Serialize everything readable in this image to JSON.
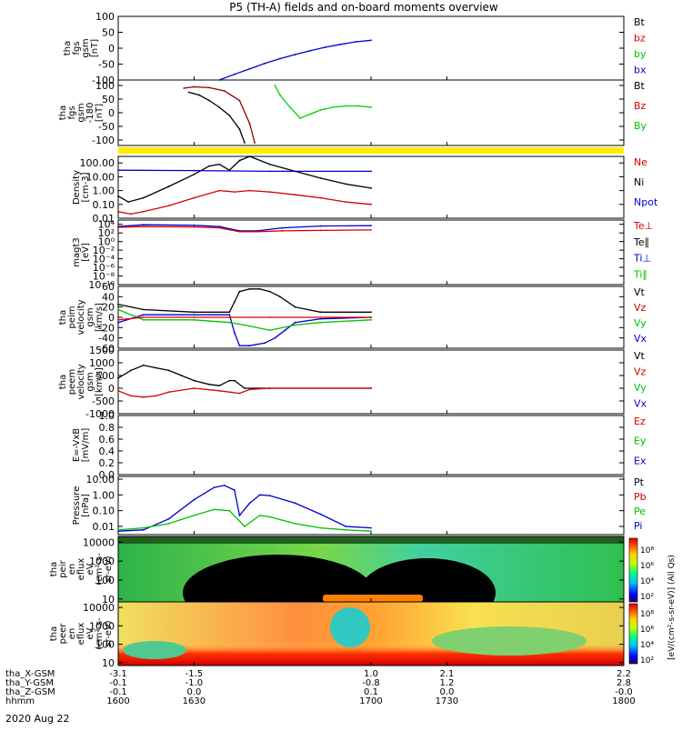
{
  "title": "P5 (TH-A) fields and on-board moments overview",
  "date": "2020 Aug 22",
  "x_axis": {
    "row_labels": [
      "tha_X-GSM",
      "tha_Y-GSM",
      "tha_Z-GSM",
      "hhmm"
    ],
    "columns": [
      [
        "-3.1",
        "-0.1",
        "-0.1",
        "1600"
      ],
      [
        "-1.5",
        "-1.0",
        "0.0",
        "1630"
      ],
      [
        "1.0",
        "-0.8",
        "0.1",
        "1700"
      ],
      [
        "2.1",
        "1.2",
        "0.0",
        "1730"
      ],
      [
        "2.2",
        "2.8",
        "-0.0",
        "1800"
      ]
    ]
  },
  "colorbar": {
    "ticks": [
      "10⁸",
      "10⁶",
      "10⁴",
      "10²"
    ],
    "units": "[eV/(cm²-s-sr-eV)] (All Qs)"
  },
  "chart_data": [
    {
      "type": "line",
      "ylabel": "tha\nfgs\ngsm\n[nT]",
      "ylim": [
        -100,
        100
      ],
      "yticks": [
        "100",
        "50",
        "0",
        "-50",
        "-100"
      ],
      "legend": [
        {
          "name": "Bt",
          "color": "#000000"
        },
        {
          "name": "bz",
          "color": "#d40000"
        },
        {
          "name": "by",
          "color": "#00c000"
        },
        {
          "name": "bx",
          "color": "#0000d0"
        }
      ],
      "series": [
        {
          "name": "bx",
          "color": "#0000d0",
          "x": [
            1640,
            1646,
            1652,
            1658,
            1664,
            1670,
            1676,
            1682,
            1688,
            1694,
            1700
          ],
          "y": [
            -100,
            -82,
            -65,
            -48,
            -33,
            -20,
            -8,
            3,
            12,
            20,
            25
          ]
        }
      ]
    },
    {
      "type": "line",
      "ylabel": "tha\nfgs\ngsm\n-180\n[nT]",
      "ylim": [
        -120,
        120
      ],
      "yticks": [
        "100",
        "50",
        "0",
        "-50",
        "-100"
      ],
      "legend": [
        {
          "name": "Bt",
          "color": "#000000"
        },
        {
          "name": "Bz",
          "color": "#d40000"
        },
        {
          "name": "By",
          "color": "#00c000"
        }
      ],
      "series": [
        {
          "name": "Bt",
          "color": "#000000",
          "x": [
            1628,
            1632,
            1636,
            1640,
            1644,
            1648,
            1650
          ],
          "y": [
            75,
            65,
            45,
            20,
            -10,
            -60,
            -110
          ]
        },
        {
          "name": "Bz",
          "color": "#8b0000",
          "x": [
            1626,
            1630,
            1636,
            1642,
            1648,
            1652,
            1654
          ],
          "y": [
            90,
            95,
            92,
            80,
            45,
            -40,
            -110
          ]
        },
        {
          "name": "By",
          "color": "#00d000",
          "x": [
            1662,
            1664,
            1668,
            1672,
            1676,
            1680,
            1685,
            1690,
            1695,
            1700
          ],
          "y": [
            100,
            65,
            20,
            -20,
            -5,
            10,
            20,
            25,
            25,
            20
          ]
        }
      ]
    },
    {
      "type": "line",
      "ylabel": "Density\n[cm-3]",
      "scale": "log",
      "ylim": [
        0.01,
        300
      ],
      "yticks": [
        "100.00",
        "10.00",
        "1.00",
        "0.10",
        "0.01"
      ],
      "legend": [
        {
          "name": "Ne",
          "color": "#d40000"
        },
        {
          "name": "Ni",
          "color": "#000000"
        },
        {
          "name": "Npot",
          "color": "#0000d0"
        }
      ],
      "series": [
        {
          "name": "Ni",
          "color": "#000000",
          "x": [
            1600,
            1604,
            1610,
            1620,
            1630,
            1636,
            1640,
            1644,
            1648,
            1652,
            1660,
            1670,
            1680,
            1690,
            1700
          ],
          "y": [
            0.4,
            0.15,
            0.3,
            2,
            15,
            60,
            80,
            30,
            150,
            300,
            80,
            25,
            8,
            3,
            1.5
          ]
        },
        {
          "name": "Ne",
          "color": "#d40000",
          "x": [
            1600,
            1605,
            1610,
            1620,
            1630,
            1640,
            1646,
            1652,
            1660,
            1670,
            1680,
            1690,
            1700
          ],
          "y": [
            0.03,
            0.02,
            0.03,
            0.08,
            0.3,
            1,
            0.8,
            1,
            0.8,
            0.5,
            0.3,
            0.15,
            0.1
          ]
        },
        {
          "name": "Npot",
          "color": "#0000d0",
          "x": [
            1600,
            1630,
            1660,
            1700
          ],
          "y": [
            30,
            28,
            25,
            25
          ]
        }
      ]
    },
    {
      "type": "line",
      "ylabel": "magt3\n[eV]",
      "scale": "log",
      "ylim": [
        1e-10,
        100000.0
      ],
      "yticks": [
        "10⁴",
        "10²",
        "10⁰",
        "10⁻²",
        "10⁻⁴",
        "10⁻⁶",
        "10⁻⁸",
        "10⁻¹⁰"
      ],
      "legend": [
        {
          "name": "Te⊥",
          "color": "#d40000"
        },
        {
          "name": "Te∥",
          "color": "#000000"
        },
        {
          "name": "Ti⊥",
          "color": "#0000d0"
        },
        {
          "name": "Ti∥",
          "color": "#00c000"
        }
      ],
      "series": [
        {
          "name": "Ti⊥",
          "color": "#0000d0",
          "x": [
            1600,
            1610,
            1630,
            1640,
            1648,
            1655,
            1665,
            1680,
            1700
          ],
          "y": [
            3000,
            8000,
            6000,
            3000,
            300,
            300,
            1500,
            4000,
            5000
          ]
        },
        {
          "name": "Te⊥",
          "color": "#d40000",
          "x": [
            1600,
            1610,
            1630,
            1640,
            1648,
            1655,
            1665,
            1680,
            1700
          ],
          "y": [
            2000,
            3000,
            2500,
            1500,
            200,
            200,
            300,
            400,
            500
          ]
        }
      ]
    },
    {
      "type": "line",
      "ylabel": "tha\npeim\nvelocity\ngsm\n[km/s]",
      "ylim": [
        -60,
        60
      ],
      "yticks": [
        "60",
        "40",
        "20",
        "0",
        "-20",
        "-40",
        "-60"
      ],
      "legend": [
        {
          "name": "Vt",
          "color": "#000000"
        },
        {
          "name": "Vz",
          "color": "#d40000"
        },
        {
          "name": "Vy",
          "color": "#00c000"
        },
        {
          "name": "Vx",
          "color": "#0000d0"
        }
      ],
      "series": [
        {
          "name": "Vt",
          "color": "#000000",
          "x": [
            1600,
            1610,
            1630,
            1644,
            1646,
            1648,
            1652,
            1656,
            1660,
            1664,
            1670,
            1680,
            1700
          ],
          "y": [
            25,
            15,
            10,
            10,
            30,
            50,
            55,
            55,
            50,
            40,
            20,
            10,
            10
          ]
        },
        {
          "name": "Vx",
          "color": "#0000d0",
          "x": [
            1600,
            1610,
            1630,
            1644,
            1646,
            1648,
            1652,
            1658,
            1662,
            1666,
            1670,
            1680,
            1700
          ],
          "y": [
            -10,
            5,
            5,
            5,
            -30,
            -55,
            -55,
            -50,
            -40,
            -25,
            -10,
            -3,
            0
          ]
        },
        {
          "name": "Vy",
          "color": "#00c000",
          "x": [
            1600,
            1610,
            1630,
            1644,
            1650,
            1660,
            1670,
            1680,
            1700
          ],
          "y": [
            15,
            -5,
            -5,
            -10,
            -15,
            -25,
            -15,
            -10,
            -5
          ]
        },
        {
          "name": "Vz",
          "color": "#d40000",
          "x": [
            1600,
            1610,
            1630,
            1660,
            1700
          ],
          "y": [
            -5,
            0,
            0,
            0,
            0
          ]
        }
      ]
    },
    {
      "type": "line",
      "ylabel": "tha\npeem\nvelocity\ngsm\n[km/s]",
      "ylim": [
        -1000,
        1500
      ],
      "yticks": [
        "1500",
        "1000",
        "500",
        "0",
        "-500",
        "-1000"
      ],
      "legend": [
        {
          "name": "Vt",
          "color": "#000000"
        },
        {
          "name": "Vz",
          "color": "#d40000"
        },
        {
          "name": "Vy",
          "color": "#00c000"
        },
        {
          "name": "Vx",
          "color": "#0000d0"
        }
      ],
      "series": [
        {
          "name": "Vt",
          "color": "#000000",
          "x": [
            1600,
            1605,
            1610,
            1615,
            1620,
            1625,
            1630,
            1636,
            1640,
            1644,
            1646,
            1650,
            1660,
            1700
          ],
          "y": [
            400,
            700,
            900,
            800,
            700,
            500,
            300,
            150,
            100,
            300,
            300,
            0,
            0,
            0
          ]
        },
        {
          "name": "Vz",
          "color": "#d40000",
          "x": [
            1600,
            1605,
            1610,
            1615,
            1620,
            1630,
            1640,
            1648,
            1652,
            1660,
            1700
          ],
          "y": [
            -100,
            -300,
            -350,
            -300,
            -150,
            0,
            -100,
            -200,
            -50,
            0,
            0
          ]
        }
      ]
    },
    {
      "type": "line",
      "ylabel": "E=-VxB\n[mV/m]",
      "ylim": [
        0,
        1
      ],
      "yticks": [
        "1.0",
        "0.8",
        "0.6",
        "0.4",
        "0.2",
        "0.0"
      ],
      "legend": [
        {
          "name": "Ez",
          "color": "#d40000"
        },
        {
          "name": "Ey",
          "color": "#00c000"
        },
        {
          "name": "Ex",
          "color": "#0000d0"
        }
      ],
      "series": []
    },
    {
      "type": "line",
      "ylabel": "Pressure\n[nPa]",
      "scale": "log",
      "ylim": [
        0.003,
        15
      ],
      "yticks": [
        "10.00",
        "1.00",
        "0.10",
        "0.01"
      ],
      "legend": [
        {
          "name": "Pt",
          "color": "#000000"
        },
        {
          "name": "Pb",
          "color": "#d40000"
        },
        {
          "name": "Pe",
          "color": "#00c000"
        },
        {
          "name": "Pi",
          "color": "#0000d0"
        }
      ],
      "series": [
        {
          "name": "Pi",
          "color": "#0000d0",
          "x": [
            1600,
            1610,
            1620,
            1630,
            1638,
            1642,
            1646,
            1648,
            1652,
            1656,
            1660,
            1670,
            1680,
            1690,
            1700
          ],
          "y": [
            0.005,
            0.006,
            0.03,
            0.5,
            3,
            4,
            2,
            0.05,
            0.3,
            1,
            0.9,
            0.3,
            0.06,
            0.01,
            0.008
          ]
        },
        {
          "name": "Pe",
          "color": "#00c000",
          "x": [
            1600,
            1610,
            1620,
            1630,
            1638,
            1644,
            1650,
            1656,
            1660,
            1670,
            1680,
            1690,
            1700
          ],
          "y": [
            0.006,
            0.008,
            0.015,
            0.05,
            0.12,
            0.1,
            0.01,
            0.05,
            0.04,
            0.015,
            0.008,
            0.006,
            0.005
          ]
        }
      ]
    },
    {
      "type": "heatmap",
      "ylabel": "tha\npeir\nen\neflux\neV\n(cm²-s-\nsr-eV)",
      "scale": "log",
      "ylim": [
        7,
        20000
      ],
      "yticks": [
        "10000",
        "1000",
        "100",
        "10"
      ]
    },
    {
      "type": "heatmap",
      "ylabel": "tha\npeer\nen\neflux\neV\n(cm²-s-\nsr-eV)",
      "scale": "log",
      "ylim": [
        7,
        20000
      ],
      "yticks": [
        "10000",
        "1000",
        "100",
        "10"
      ]
    }
  ]
}
